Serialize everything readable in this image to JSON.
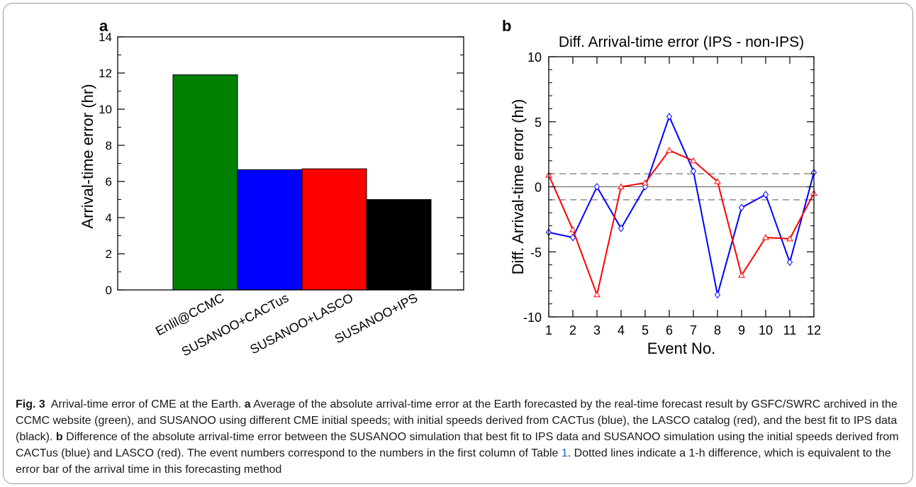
{
  "chart_data": [
    {
      "type": "bar",
      "panel_label": "a",
      "title": "",
      "xlabel": "",
      "ylabel": "Arrival-time error (hr)",
      "ylim": [
        0,
        14
      ],
      "yticks": [
        0,
        2,
        4,
        6,
        8,
        10,
        12,
        14
      ],
      "categories": [
        "Enlil@CCMC",
        "SUSANOO+CACTus",
        "SUSANOO+LASCO",
        "SUSANOO+IPS"
      ],
      "values": [
        11.9,
        6.65,
        6.7,
        5.0
      ],
      "colors": [
        "#008000",
        "#0000ff",
        "#ff0000",
        "#000000"
      ],
      "grid": false
    },
    {
      "type": "line",
      "panel_label": "b",
      "title": "Diff. Arrival-time error (IPS - non-IPS)",
      "xlabel": "Event No.",
      "ylabel": "Diff. Arrival-time error (hr)",
      "xlim": [
        1,
        12
      ],
      "ylim": [
        -10,
        10
      ],
      "xticks": [
        1,
        2,
        3,
        4,
        5,
        6,
        7,
        8,
        9,
        10,
        11,
        12
      ],
      "yticks": [
        -10,
        -5,
        0,
        5,
        10
      ],
      "x": [
        1,
        2,
        3,
        4,
        5,
        6,
        7,
        8,
        9,
        10,
        11,
        12
      ],
      "series": [
        {
          "color": "#0000ff",
          "marker": "diamond",
          "values": [
            -3.5,
            -3.9,
            0.0,
            -3.2,
            0.0,
            5.4,
            1.2,
            -8.3,
            -1.6,
            -0.6,
            -5.8,
            1.1
          ]
        },
        {
          "color": "#ff0000",
          "marker": "triangle",
          "values": [
            0.9,
            -3.3,
            -8.3,
            0.0,
            0.3,
            2.8,
            2.0,
            0.4,
            -6.8,
            -3.9,
            -4.0,
            -0.5
          ]
        }
      ],
      "reference_lines": [
        1,
        0,
        -1
      ],
      "grid": false
    }
  ],
  "caption": {
    "fig_label": "Fig. 3",
    "title": "Arrival-time error of CME at the Earth.",
    "a_label": "a",
    "part_a": "Average of the absolute arrival-time error at the Earth forecasted by the real-time forecast result by GSFC/SWRC archived in the CCMC website (green), and SUSANOO using different CME initial speeds; with initial speeds derived from CACTus (blue), the LASCO catalog (red), and the best fit to IPS data (black).",
    "b_label": "b",
    "part_b_1": "Difference of the absolute arrival-time error between the SUSANOO simulation that best fit to IPS data and SUSANOO simulation using the initial speeds derived from CACTus (blue) and LASCO (red). The event numbers correspond to the numbers in the first column of Table",
    "table_ref": "1",
    "part_b_2": ". Dotted lines indicate a 1-h difference, which is equivalent to the error bar of the arrival time in this forecasting method"
  }
}
